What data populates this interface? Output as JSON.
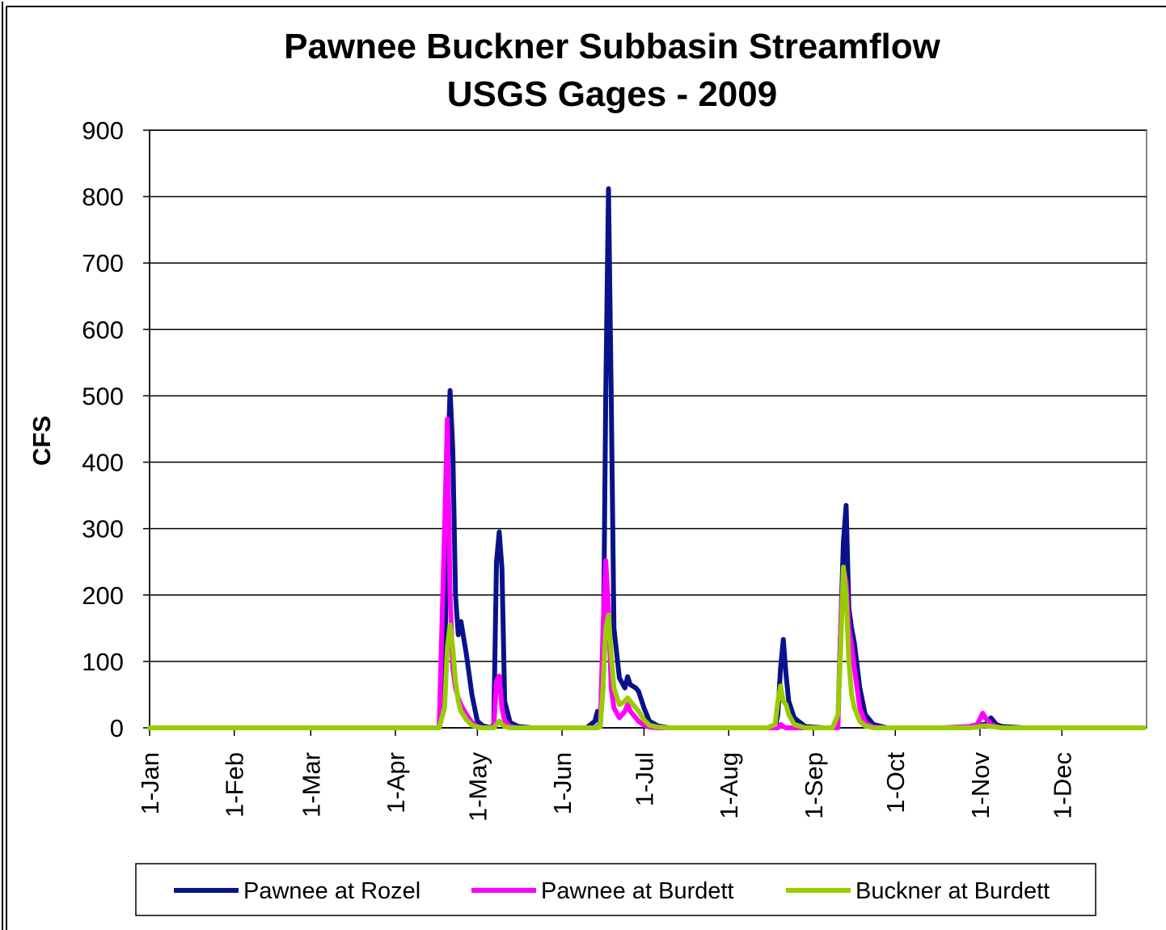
{
  "chart_data": {
    "type": "line",
    "title": "Pawnee Buckner Subbasin Streamflow",
    "subtitle": "USGS Gages - 2009",
    "y_label": "CFS",
    "x": [
      0,
      100,
      104,
      106,
      108,
      109,
      110,
      111,
      112,
      113,
      114,
      116,
      118,
      120,
      122,
      125,
      126,
      127,
      128,
      129,
      130,
      132,
      135,
      140,
      150,
      160,
      163,
      164,
      165,
      166,
      167,
      168,
      169,
      170,
      172,
      174,
      175,
      176,
      178,
      179,
      181,
      183,
      186,
      190,
      200,
      226,
      229,
      230,
      231,
      232,
      233,
      234,
      236,
      240,
      247,
      250,
      252,
      253,
      254,
      255,
      256,
      257,
      258,
      260,
      262,
      265,
      270,
      290,
      300,
      303,
      305,
      306,
      308,
      310,
      312,
      320,
      364
    ],
    "series": [
      {
        "name": "Pawnee at Rozel",
        "color": "#0a128a",
        "values": [
          0,
          0,
          0,
          0,
          50,
          380,
          508,
          420,
          200,
          140,
          160,
          110,
          50,
          10,
          3,
          0,
          5,
          250,
          295,
          240,
          40,
          8,
          2,
          0,
          0,
          0,
          10,
          25,
          5,
          60,
          500,
          812,
          500,
          150,
          75,
          60,
          77,
          65,
          60,
          55,
          30,
          10,
          3,
          0,
          0,
          0,
          0,
          20,
          90,
          133,
          80,
          40,
          15,
          2,
          0,
          0,
          10,
          150,
          280,
          335,
          180,
          150,
          128,
          60,
          20,
          5,
          0,
          0,
          0,
          2,
          5,
          5,
          15,
          5,
          2,
          0,
          0
        ]
      },
      {
        "name": "Pawnee at Burdett",
        "color": "#ff00ff",
        "values": [
          0,
          0,
          0,
          0,
          300,
          465,
          200,
          90,
          60,
          45,
          35,
          20,
          8,
          2,
          0,
          0,
          2,
          70,
          78,
          30,
          10,
          2,
          0,
          0,
          0,
          0,
          0,
          2,
          2,
          150,
          252,
          180,
          60,
          30,
          15,
          25,
          35,
          25,
          15,
          10,
          4,
          1,
          0,
          0,
          0,
          0,
          0,
          0,
          5,
          2,
          0,
          0,
          0,
          0,
          0,
          0,
          0,
          150,
          240,
          220,
          150,
          125,
          90,
          30,
          8,
          1,
          0,
          0,
          2,
          5,
          22,
          15,
          5,
          2,
          0,
          0,
          0
        ]
      },
      {
        "name": "Buckner at Burdett",
        "color": "#99cc00",
        "values": [
          0,
          0,
          0,
          0,
          30,
          120,
          155,
          120,
          70,
          40,
          25,
          12,
          4,
          1,
          0,
          0,
          0,
          5,
          10,
          5,
          2,
          0,
          0,
          0,
          0,
          0,
          0,
          0,
          2,
          60,
          150,
          170,
          110,
          60,
          35,
          40,
          45,
          40,
          30,
          25,
          12,
          4,
          1,
          0,
          0,
          0,
          5,
          40,
          63,
          40,
          35,
          20,
          5,
          0,
          0,
          0,
          20,
          120,
          242,
          200,
          100,
          50,
          30,
          10,
          3,
          0,
          0,
          0,
          0,
          1,
          3,
          3,
          2,
          1,
          0,
          0,
          0
        ]
      }
    ],
    "xlim": [
      0,
      365
    ],
    "xticks": [
      {
        "value": 0,
        "label": "1-Jan"
      },
      {
        "value": 31,
        "label": "1-Feb"
      },
      {
        "value": 59,
        "label": "1-Mar"
      },
      {
        "value": 90,
        "label": "1-Apr"
      },
      {
        "value": 120,
        "label": "1-May"
      },
      {
        "value": 151,
        "label": "1-Jun"
      },
      {
        "value": 181,
        "label": "1-Jul"
      },
      {
        "value": 212,
        "label": "1-Aug"
      },
      {
        "value": 243,
        "label": "1-Sep"
      },
      {
        "value": 273,
        "label": "1-Oct"
      },
      {
        "value": 304,
        "label": "1-Nov"
      },
      {
        "value": 334,
        "label": "1-Dec"
      }
    ],
    "ylim": [
      0,
      900
    ],
    "yticks": [
      0,
      100,
      200,
      300,
      400,
      500,
      600,
      700,
      800,
      900
    ],
    "grid": true,
    "legend": "bottom"
  }
}
